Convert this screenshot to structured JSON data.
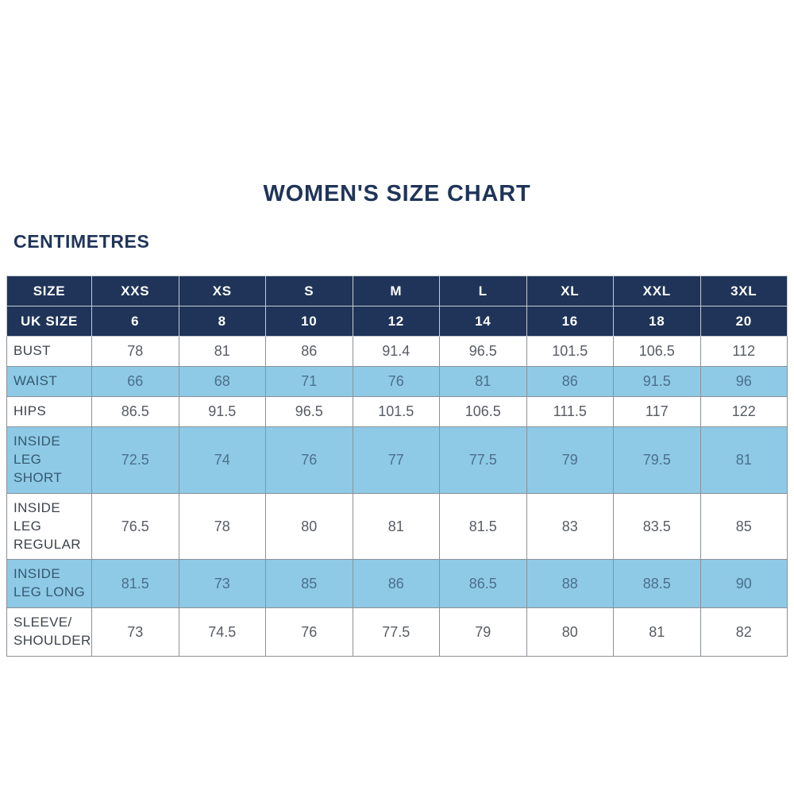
{
  "page": {
    "title": "WOMEN'S SIZE CHART",
    "unit_label": "CENTIMETRES"
  },
  "chart_data": {
    "type": "table",
    "title": "WOMEN'S SIZE CHART",
    "unit_label": "CENTIMETRES",
    "columns": [
      "SIZE",
      "XXS",
      "XS",
      "S",
      "M",
      "L",
      "XL",
      "XXL",
      "3XL"
    ],
    "uk_size_row": {
      "label": "UK SIZE",
      "values": [
        "6",
        "8",
        "10",
        "12",
        "14",
        "16",
        "18",
        "20"
      ]
    },
    "rows": [
      {
        "label": "BUST",
        "highlight": false,
        "values": [
          "78",
          "81",
          "86",
          "91.4",
          "96.5",
          "101.5",
          "106.5",
          "112"
        ]
      },
      {
        "label": "WAIST",
        "highlight": true,
        "values": [
          "66",
          "68",
          "71",
          "76",
          "81",
          "86",
          "91.5",
          "96"
        ]
      },
      {
        "label": "HIPS",
        "highlight": false,
        "values": [
          "86.5",
          "91.5",
          "96.5",
          "101.5",
          "106.5",
          "111.5",
          "117",
          "122"
        ]
      },
      {
        "label": "INSIDE LEG SHORT",
        "highlight": true,
        "values": [
          "72.5",
          "74",
          "76",
          "77",
          "77.5",
          "79",
          "79.5",
          "81"
        ]
      },
      {
        "label": "INSIDE LEG REGULAR",
        "highlight": false,
        "values": [
          "76.5",
          "78",
          "80",
          "81",
          "81.5",
          "83",
          "83.5",
          "85"
        ]
      },
      {
        "label": "INSIDE LEG LONG",
        "highlight": true,
        "values": [
          "81.5",
          "73",
          "85",
          "86",
          "86.5",
          "88",
          "88.5",
          "90"
        ]
      },
      {
        "label": "SLEEVE/ SHOULDER",
        "highlight": false,
        "values": [
          "73",
          "74.5",
          "76",
          "77.5",
          "79",
          "80",
          "81",
          "82"
        ]
      }
    ],
    "layout": {
      "legend_position": "none",
      "grid": "all-borders"
    },
    "colors": {
      "header_bg": "#1f3458",
      "header_text": "#ffffff",
      "highlight_row_bg": "#8ecae6",
      "body_border": "#8b9198",
      "header_border": "#c6ccd3",
      "title_text": "#1f3458",
      "body_text": "#575c63",
      "highlight_text": "#4b6f8c",
      "page_bg": "#ffffff"
    }
  }
}
